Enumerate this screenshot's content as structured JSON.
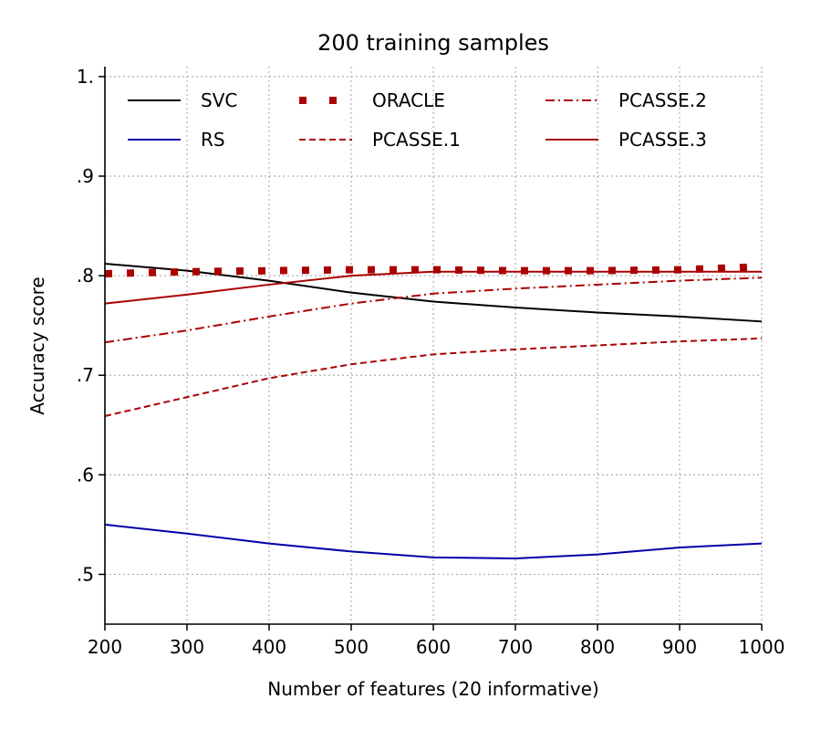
{
  "chart_data": {
    "type": "line",
    "title": "200 training samples",
    "xlabel": "Number of features (20 informative)",
    "ylabel": "Accuracy score",
    "xlim": [
      200,
      1000
    ],
    "ylim": [
      0.45,
      1.01
    ],
    "x_ticks": [
      200,
      300,
      400,
      500,
      600,
      700,
      800,
      900,
      1000
    ],
    "y_ticks": [
      0.5,
      0.6,
      0.7,
      0.8,
      0.9,
      1.0
    ],
    "y_tick_labels": [
      ".5",
      ".6",
      ".7",
      ".8",
      ".9",
      "1."
    ],
    "grid": true,
    "legend_position": "top",
    "x": [
      200,
      300,
      400,
      500,
      600,
      700,
      800,
      900,
      1000
    ],
    "series": [
      {
        "name": "SVC",
        "color": "#000000",
        "style": "solid",
        "values": [
          0.812,
          0.805,
          0.795,
          0.783,
          0.774,
          0.768,
          0.763,
          0.759,
          0.754
        ]
      },
      {
        "name": "RS",
        "color": "#0000aa",
        "style": "solid",
        "values": [
          0.55,
          0.541,
          0.531,
          0.523,
          0.517,
          0.516,
          0.52,
          0.527,
          0.531
        ]
      },
      {
        "name": "ORACLE",
        "color": "#aa0000",
        "style": "dotted",
        "values": [
          0.802,
          0.804,
          0.805,
          0.806,
          0.806,
          0.805,
          0.805,
          0.806,
          0.809
        ]
      },
      {
        "name": "PCASSE.1",
        "color": "#aa0000",
        "style": "dashed",
        "values": [
          0.659,
          0.678,
          0.697,
          0.711,
          0.721,
          0.726,
          0.73,
          0.734,
          0.737
        ]
      },
      {
        "name": "PCASSE.2",
        "color": "#aa0000",
        "style": "dashdot",
        "values": [
          0.733,
          0.745,
          0.759,
          0.772,
          0.782,
          0.787,
          0.791,
          0.795,
          0.798
        ]
      },
      {
        "name": "PCASSE.3",
        "color": "#aa0000",
        "style": "solid",
        "values": [
          0.772,
          0.781,
          0.791,
          0.8,
          0.804,
          0.804,
          0.804,
          0.804,
          0.804
        ]
      }
    ]
  }
}
